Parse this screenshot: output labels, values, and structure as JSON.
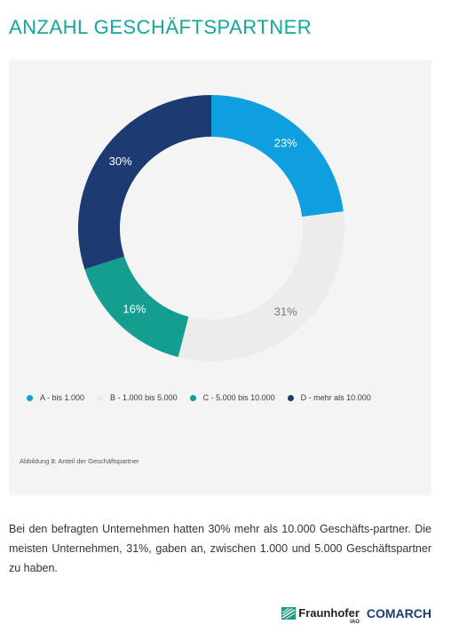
{
  "header": {
    "title": "ANZAHL GESCHÄFTSPARTNER"
  },
  "chart_data": {
    "type": "pie",
    "variant": "donut",
    "categories": [
      "A - bis 1.000",
      "B - 1.000 bis 5.000",
      "C - 5.000 bis 10.000",
      "D - mehr als 10.000"
    ],
    "values": [
      23,
      31,
      16,
      30
    ],
    "value_labels": [
      "23%",
      "31%",
      "16%",
      "30%"
    ],
    "colors": [
      "#0f9ee0",
      "#ececec",
      "#149e8f",
      "#1d3a72"
    ],
    "label_colors": [
      "#ffffff",
      "#7a7a7a",
      "#ffffff",
      "#ffffff"
    ],
    "start": "top",
    "direction": "clockwise",
    "legend_position": "bottom"
  },
  "caption": "Abbildung 8: Anteil der Geschäftspartner",
  "body_text": "Bei den befragten Unternehmen hatten 30% mehr als 10.000 Geschäfts-partner. Die meisten Unternehmen, 31%, gaben an, zwischen 1.000 und 5.000 Geschäftspartner zu haben.",
  "footer": {
    "fraunhofer": "Fraunhofer",
    "fraunhofer_sub": "IAO",
    "comarch": "COMARCH"
  }
}
